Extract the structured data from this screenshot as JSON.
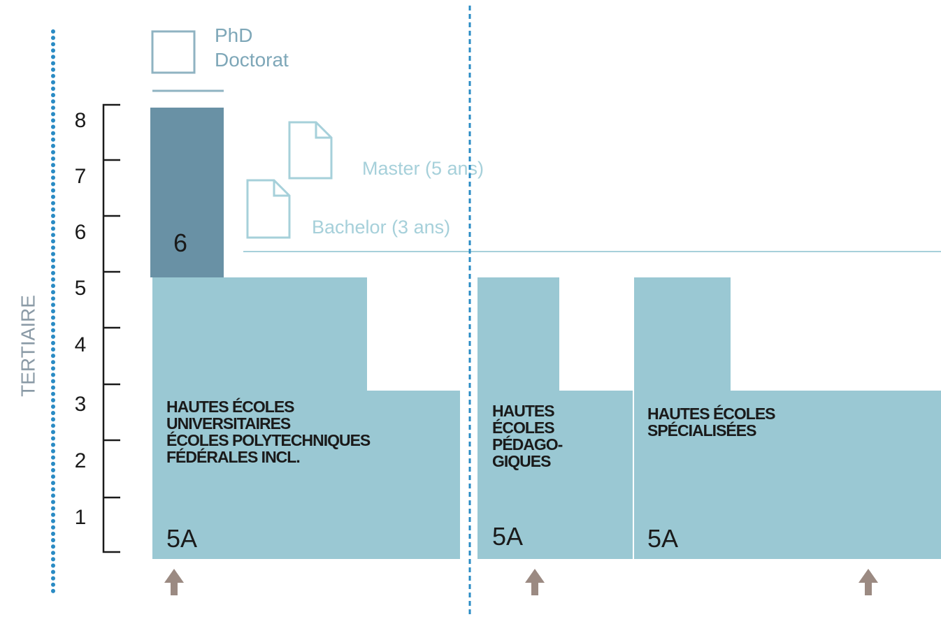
{
  "sidebar": {
    "label": "TERTIAIRE"
  },
  "scale": {
    "numbers": [
      8,
      7,
      6,
      5,
      4,
      3,
      2,
      1
    ]
  },
  "doctorate": {
    "title": "PhD",
    "subtitle": "Doctorat",
    "level": "6"
  },
  "degrees": {
    "master": "Master (5 ans)",
    "bachelor": "Bachelor (3 ans)"
  },
  "institutions": [
    {
      "lines": [
        "HAUTES ÉCOLES",
        "UNIVERSITAIRES",
        "ÉCOLES POLYTECHNIQUES",
        "FÉDÉRALES INCL."
      ],
      "level": "5A"
    },
    {
      "lines": [
        "HAUTES",
        "ÉCOLES",
        "PÉDAGO-",
        "GIQUES"
      ],
      "level": "5A"
    },
    {
      "lines": [
        "HAUTES ÉCOLES",
        "SPÉCIALISÉES"
      ],
      "level": "5A"
    }
  ]
}
